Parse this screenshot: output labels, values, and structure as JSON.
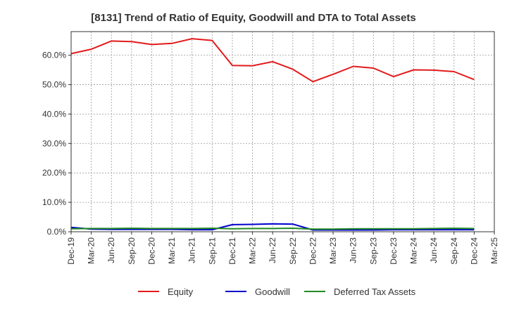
{
  "chart_data": {
    "type": "line",
    "title": "[8131]  Trend of Ratio of Equity, Goodwill and DTA to Total Assets",
    "xlabel": "",
    "ylabel": "",
    "x": [
      "Dec-19",
      "Mar-20",
      "Jun-20",
      "Sep-20",
      "Dec-20",
      "Mar-21",
      "Jun-21",
      "Sep-21",
      "Dec-21",
      "Mar-22",
      "Jun-22",
      "Sep-22",
      "Dec-22",
      "Mar-23",
      "Jun-23",
      "Sep-23",
      "Dec-23",
      "Mar-24",
      "Jun-24",
      "Sep-24",
      "Dec-24",
      "Mar-25"
    ],
    "y_ticks": [
      0,
      10,
      20,
      30,
      40,
      50,
      60
    ],
    "y_tick_labels": [
      "0.0%",
      "10.0%",
      "20.0%",
      "30.0%",
      "40.0%",
      "50.0%",
      "60.0%"
    ],
    "ylim": [
      0,
      68
    ],
    "grid": true,
    "legend_position": "bottom",
    "series": [
      {
        "name": "Equity",
        "color": "#e31a1c",
        "values": [
          60.5,
          62.0,
          64.8,
          64.6,
          63.6,
          64.0,
          65.6,
          65.0,
          56.5,
          56.4,
          57.8,
          55.2,
          51.0,
          53.5,
          56.2,
          55.6,
          52.7,
          55.0,
          54.9,
          54.4,
          51.7,
          null
        ]
      },
      {
        "name": "Goodwill",
        "color": "#0000cc",
        "values": [
          1.5,
          0.9,
          0.8,
          0.8,
          0.8,
          0.8,
          0.7,
          0.7,
          2.4,
          2.5,
          2.7,
          2.6,
          0.6,
          0.6,
          0.6,
          0.6,
          0.7,
          0.7,
          0.7,
          0.7,
          0.7,
          null
        ]
      },
      {
        "name": "Deferred Tax Assets",
        "color": "#228b22",
        "values": [
          1.0,
          1.1,
          1.1,
          1.2,
          1.1,
          1.1,
          1.1,
          1.2,
          1.0,
          1.1,
          1.1,
          1.2,
          0.9,
          0.9,
          1.0,
          1.0,
          1.0,
          1.0,
          1.1,
          1.2,
          1.1,
          null
        ]
      }
    ]
  }
}
